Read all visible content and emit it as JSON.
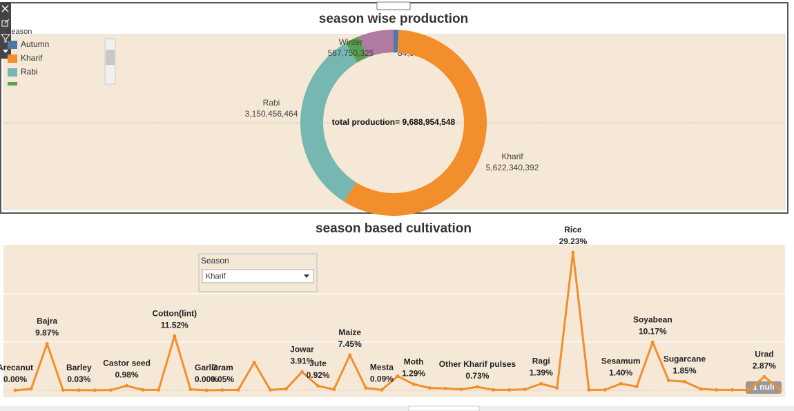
{
  "chart_data": [
    {
      "type": "donut",
      "title": "season wise production",
      "legend_title": "Season",
      "categories": [
        "Autumn",
        "Kharif",
        "Rabi",
        null,
        "Winter"
      ],
      "values": [
        84641434,
        5622340392,
        3150456464,
        243765933,
        587750325
      ],
      "value_labels": [
        "84,641,434",
        "5,622,340,392",
        "3,150,456,464",
        null,
        "587,750,325"
      ],
      "colors": [
        "#4e79a7",
        "#f28e2b",
        "#76b7b2",
        "#59a14f",
        "#b07aa1"
      ],
      "center_label": "total production= 9,688,954,548"
    },
    {
      "type": "line",
      "title": "season based cultivation",
      "filter": {
        "label": "Season",
        "value": "Kharif"
      },
      "categories": [
        "Arecanut",
        null,
        "Bajra",
        null,
        "Barley",
        null,
        null,
        "Castor seed",
        null,
        null,
        "Cotton(lint)",
        null,
        "Garlic",
        "Gram",
        null,
        null,
        null,
        null,
        "Jowar",
        "Jute",
        null,
        "Maize",
        null,
        "Mesta",
        null,
        "Moth",
        null,
        null,
        null,
        "Other Kharif pulses",
        null,
        null,
        null,
        "Ragi",
        null,
        "Rice",
        null,
        null,
        "Sesamum",
        null,
        "Soyabean",
        null,
        "Sugarcane",
        null,
        null,
        null,
        null,
        "Urad",
        null
      ],
      "values": [
        0.0,
        0.3,
        9.87,
        0.05,
        0.03,
        0.02,
        0.05,
        0.98,
        0.1,
        0.1,
        11.52,
        0.2,
        0.0,
        0.05,
        0.1,
        5.9,
        0.1,
        0.3,
        3.91,
        0.92,
        0.2,
        7.45,
        0.5,
        0.09,
        3.0,
        1.29,
        0.5,
        0.4,
        0.2,
        0.73,
        0.1,
        0.1,
        0.2,
        1.39,
        0.5,
        29.23,
        0.1,
        0.1,
        1.4,
        0.8,
        10.17,
        2.1,
        1.85,
        0.3,
        0.1,
        0.1,
        0.05,
        2.87,
        0.2
      ],
      "value_labels": [
        "0.00%",
        null,
        "9.87%",
        null,
        "0.03%",
        null,
        null,
        "0.98%",
        null,
        null,
        "11.52%",
        null,
        "0.00%",
        "0.05%",
        null,
        null,
        null,
        null,
        "3.91%",
        "0.92%",
        null,
        "7.45%",
        null,
        "0.09%",
        null,
        "1.29%",
        null,
        null,
        null,
        "0.73%",
        null,
        null,
        null,
        "1.39%",
        null,
        "29.23%",
        null,
        null,
        "1.40%",
        null,
        "10.17%",
        null,
        "1.85%",
        null,
        null,
        null,
        null,
        "2.87%",
        null
      ],
      "color": "#f28e2b",
      "ylim": [
        0,
        30
      ],
      "null_indicator": "1 null"
    }
  ]
}
